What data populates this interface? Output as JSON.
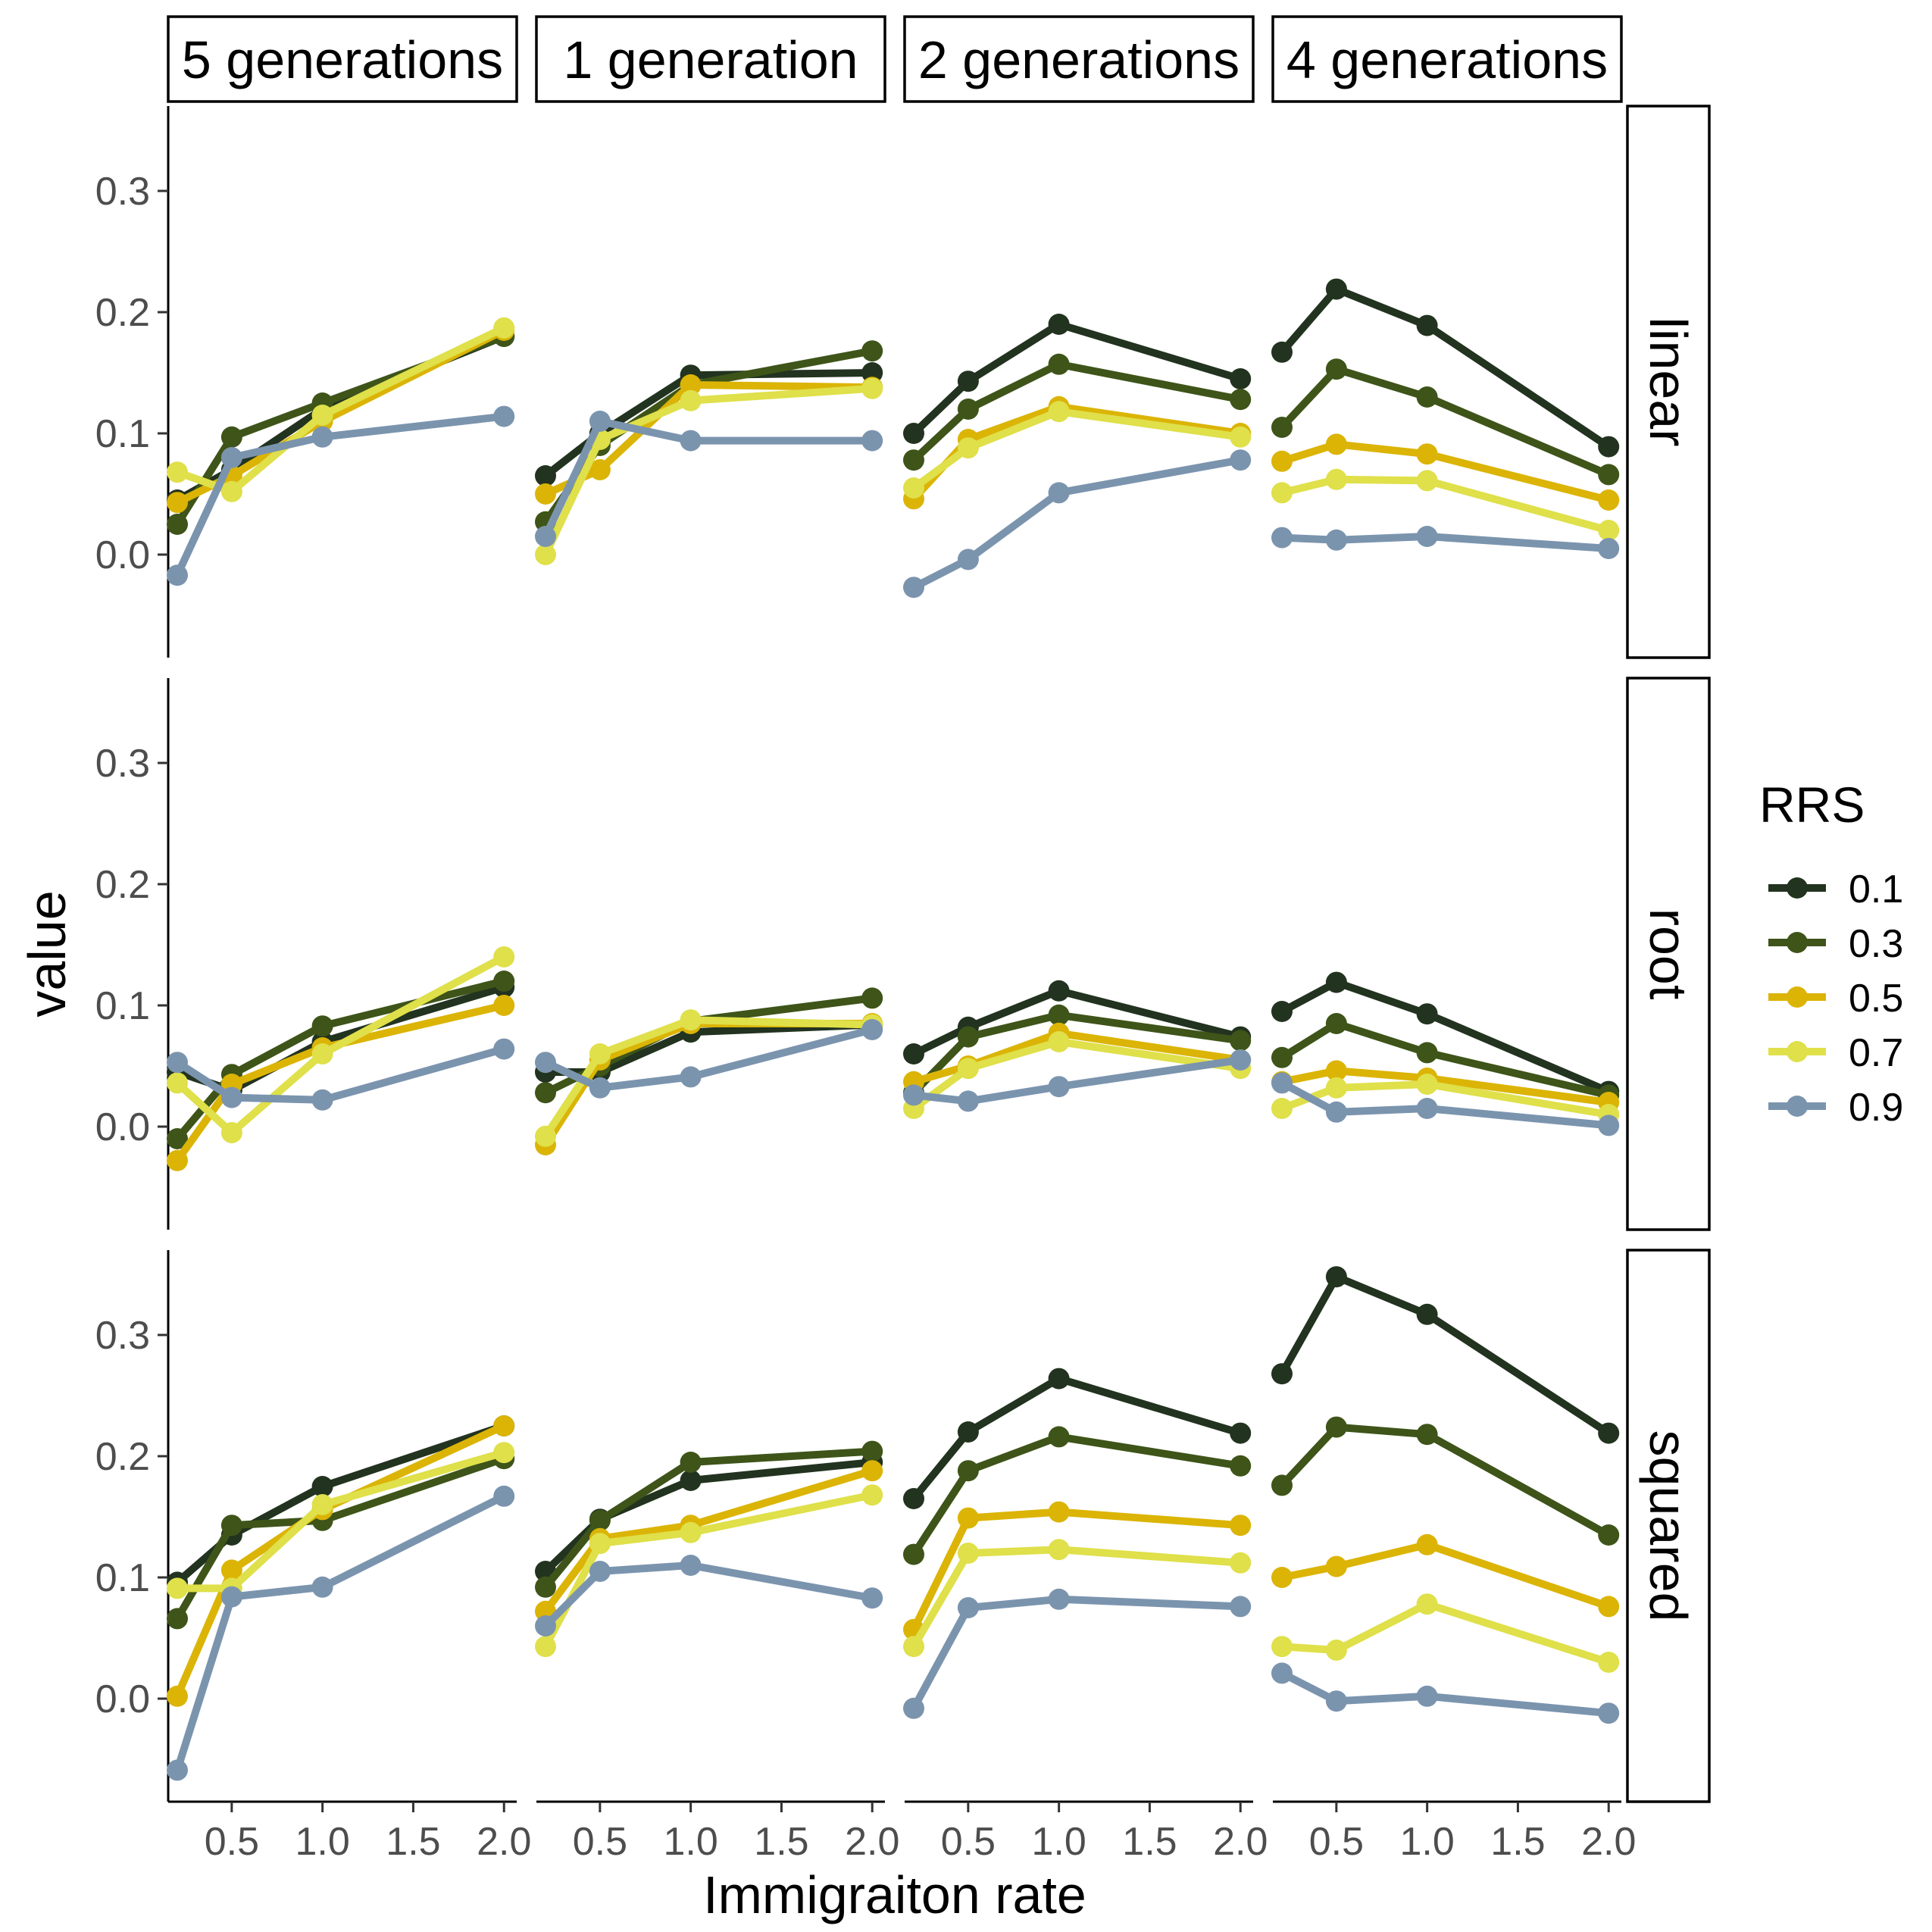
{
  "chart_data": {
    "type": "line",
    "xlabel": "Immigraiton rate",
    "ylabel": "value",
    "xlim": [
      0.15,
      2.07
    ],
    "ylim": [
      -0.085,
      0.37
    ],
    "x": [
      0.2,
      0.5,
      1.0,
      2.0
    ],
    "x_ticks": [
      0.5,
      1.0,
      1.5,
      2.0
    ],
    "x_tick_labels": [
      "0.5",
      "1.0",
      "1.5",
      "2.0"
    ],
    "y_ticks": [
      0.0,
      0.1,
      0.2,
      0.3
    ],
    "y_tick_labels": [
      "0.0",
      "0.1",
      "0.2",
      "0.3"
    ],
    "grid": false,
    "legend": {
      "title": "RRS",
      "placement": "right",
      "entries": [
        {
          "label": "0.1",
          "color": "#22331f"
        },
        {
          "label": "0.3",
          "color": "#3e5419"
        },
        {
          "label": "0.5",
          "color": "#dbb406"
        },
        {
          "label": "0.7",
          "color": "#dfe04a"
        },
        {
          "label": "0.9",
          "color": "#7b94ae"
        }
      ]
    },
    "columns": [
      "5 generations",
      "1 generation",
      "2 generations",
      "4 generations"
    ],
    "rows": [
      "linear",
      "root",
      "squared"
    ],
    "panels": [
      {
        "row": "linear",
        "column": "5 generations",
        "series": [
          {
            "name": "0.1",
            "values": [
              0.045,
              0.07,
              0.12,
              0.18
            ]
          },
          {
            "name": "0.3",
            "values": [
              0.025,
              0.097,
              0.125,
              0.18
            ]
          },
          {
            "name": "0.5",
            "values": [
              0.043,
              0.065,
              0.11,
              0.185
            ]
          },
          {
            "name": "0.7",
            "values": [
              0.068,
              0.052,
              0.115,
              0.187
            ]
          },
          {
            "name": "0.9",
            "values": [
              -0.017,
              0.08,
              0.097,
              0.114
            ]
          }
        ]
      },
      {
        "row": "linear",
        "column": "1 generation",
        "series": [
          {
            "name": "0.1",
            "values": [
              0.065,
              0.1,
              0.148,
              0.15
            ]
          },
          {
            "name": "0.3",
            "values": [
              0.027,
              0.09,
              0.14,
              0.168
            ]
          },
          {
            "name": "0.5",
            "values": [
              0.05,
              0.07,
              0.14,
              0.138
            ]
          },
          {
            "name": "0.7",
            "values": [
              0.0,
              0.095,
              0.127,
              0.137
            ]
          },
          {
            "name": "0.9",
            "values": [
              0.015,
              0.11,
              0.094,
              0.094
            ]
          }
        ]
      },
      {
        "row": "linear",
        "column": "2 generations",
        "series": [
          {
            "name": "0.1",
            "values": [
              0.1,
              0.143,
              0.19,
              0.145
            ]
          },
          {
            "name": "0.3",
            "values": [
              0.078,
              0.12,
              0.157,
              0.128
            ]
          },
          {
            "name": "0.5",
            "values": [
              0.046,
              0.095,
              0.122,
              0.1
            ]
          },
          {
            "name": "0.7",
            "values": [
              0.055,
              0.088,
              0.118,
              0.097
            ]
          },
          {
            "name": "0.9",
            "values": [
              -0.027,
              -0.004,
              0.051,
              0.078
            ]
          }
        ]
      },
      {
        "row": "linear",
        "column": "4 generations",
        "series": [
          {
            "name": "0.1",
            "values": [
              0.167,
              0.219,
              0.189,
              0.089
            ]
          },
          {
            "name": "0.3",
            "values": [
              0.105,
              0.153,
              0.13,
              0.066
            ]
          },
          {
            "name": "0.5",
            "values": [
              0.077,
              0.091,
              0.083,
              0.045
            ]
          },
          {
            "name": "0.7",
            "values": [
              0.051,
              0.062,
              0.061,
              0.02
            ]
          },
          {
            "name": "0.9",
            "values": [
              0.014,
              0.012,
              0.015,
              0.005
            ]
          }
        ]
      },
      {
        "row": "root",
        "column": "5 generations",
        "series": [
          {
            "name": "0.1",
            "values": [
              0.045,
              0.03,
              0.07,
              0.115
            ]
          },
          {
            "name": "0.3",
            "values": [
              -0.01,
              0.043,
              0.083,
              0.12
            ]
          },
          {
            "name": "0.5",
            "values": [
              -0.028,
              0.035,
              0.065,
              0.1
            ]
          },
          {
            "name": "0.7",
            "values": [
              0.036,
              -0.005,
              0.06,
              0.14
            ]
          },
          {
            "name": "0.9",
            "values": [
              0.053,
              0.024,
              0.022,
              0.064
            ]
          }
        ]
      },
      {
        "row": "root",
        "column": "1 generation",
        "series": [
          {
            "name": "0.1",
            "values": [
              0.045,
              0.045,
              0.078,
              0.084
            ]
          },
          {
            "name": "0.3",
            "values": [
              0.028,
              0.05,
              0.087,
              0.106
            ]
          },
          {
            "name": "0.5",
            "values": [
              -0.015,
              0.055,
              0.085,
              0.085
            ]
          },
          {
            "name": "0.7",
            "values": [
              -0.008,
              0.06,
              0.088,
              0.084
            ]
          },
          {
            "name": "0.9",
            "values": [
              0.053,
              0.032,
              0.041,
              0.08
            ]
          }
        ]
      },
      {
        "row": "root",
        "column": "2 generations",
        "series": [
          {
            "name": "0.1",
            "values": [
              0.06,
              0.082,
              0.112,
              0.074
            ]
          },
          {
            "name": "0.3",
            "values": [
              0.028,
              0.074,
              0.092,
              0.071
            ]
          },
          {
            "name": "0.5",
            "values": [
              0.037,
              0.05,
              0.077,
              0.055
            ]
          },
          {
            "name": "0.7",
            "values": [
              0.015,
              0.048,
              0.07,
              0.048
            ]
          },
          {
            "name": "0.9",
            "values": [
              0.026,
              0.021,
              0.033,
              0.055
            ]
          }
        ]
      },
      {
        "row": "root",
        "column": "4 generations",
        "series": [
          {
            "name": "0.1",
            "values": [
              0.095,
              0.119,
              0.093,
              0.029
            ]
          },
          {
            "name": "0.3",
            "values": [
              0.057,
              0.085,
              0.061,
              0.026
            ]
          },
          {
            "name": "0.5",
            "values": [
              0.037,
              0.046,
              0.04,
              0.02
            ]
          },
          {
            "name": "0.7",
            "values": [
              0.015,
              0.032,
              0.035,
              0.01
            ]
          },
          {
            "name": "0.9",
            "values": [
              0.036,
              0.012,
              0.015,
              0.001
            ]
          }
        ]
      },
      {
        "row": "squared",
        "column": "5 generations",
        "series": [
          {
            "name": "0.1",
            "values": [
              0.096,
              0.135,
              0.175,
              0.225
            ]
          },
          {
            "name": "0.3",
            "values": [
              0.066,
              0.143,
              0.147,
              0.198
            ]
          },
          {
            "name": "0.5",
            "values": [
              0.002,
              0.106,
              0.156,
              0.225
            ]
          },
          {
            "name": "0.7",
            "values": [
              0.091,
              0.091,
              0.16,
              0.203
            ]
          },
          {
            "name": "0.9",
            "values": [
              -0.059,
              0.084,
              0.092,
              0.167
            ]
          }
        ]
      },
      {
        "row": "squared",
        "column": "1 generation",
        "series": [
          {
            "name": "0.1",
            "values": [
              0.105,
              0.148,
              0.18,
              0.195
            ]
          },
          {
            "name": "0.3",
            "values": [
              0.092,
              0.147,
              0.195,
              0.204
            ]
          },
          {
            "name": "0.5",
            "values": [
              0.072,
              0.132,
              0.143,
              0.188
            ]
          },
          {
            "name": "0.7",
            "values": [
              0.043,
              0.128,
              0.137,
              0.168
            ]
          },
          {
            "name": "0.9",
            "values": [
              0.06,
              0.105,
              0.11,
              0.083
            ]
          }
        ]
      },
      {
        "row": "squared",
        "column": "2 generations",
        "series": [
          {
            "name": "0.1",
            "values": [
              0.165,
              0.22,
              0.264,
              0.219
            ]
          },
          {
            "name": "0.3",
            "values": [
              0.119,
              0.188,
              0.216,
              0.192
            ]
          },
          {
            "name": "0.5",
            "values": [
              0.057,
              0.149,
              0.154,
              0.143
            ]
          },
          {
            "name": "0.7",
            "values": [
              0.043,
              0.12,
              0.123,
              0.112
            ]
          },
          {
            "name": "0.9",
            "values": [
              -0.008,
              0.075,
              0.082,
              0.076
            ]
          }
        ]
      },
      {
        "row": "squared",
        "column": "4 generations",
        "series": [
          {
            "name": "0.1",
            "values": [
              0.268,
              0.348,
              0.317,
              0.219
            ]
          },
          {
            "name": "0.3",
            "values": [
              0.176,
              0.224,
              0.218,
              0.135
            ]
          },
          {
            "name": "0.5",
            "values": [
              0.1,
              0.109,
              0.127,
              0.076
            ]
          },
          {
            "name": "0.7",
            "values": [
              0.043,
              0.04,
              0.078,
              0.03
            ]
          },
          {
            "name": "0.9",
            "values": [
              0.021,
              -0.002,
              0.002,
              -0.012
            ]
          }
        ]
      }
    ]
  }
}
